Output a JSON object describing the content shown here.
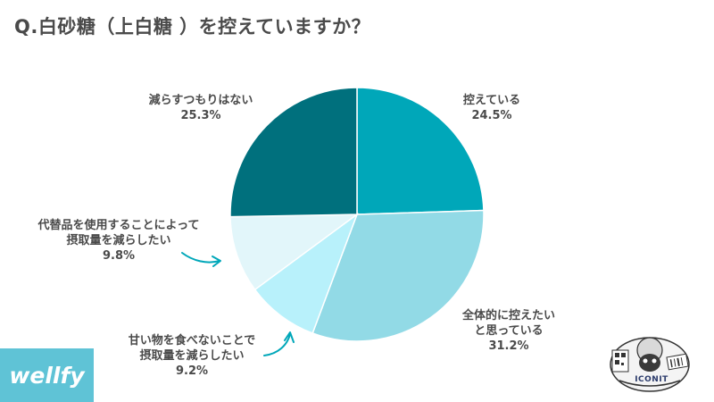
{
  "title": "Q.白砂糖（上白糖 ）を控えていますか？",
  "brand": "wellfy",
  "badge_text": "ICONIT",
  "colors": {
    "slice_1": "#00a7b9",
    "slice_2": "#92dae6",
    "slice_3": "#b8f1fb",
    "slice_4": "#e2f6fa",
    "slice_5": "#00707d",
    "arrow": "#00a7b9",
    "text": "#4a4a4a",
    "brand_bg": "#5fc3d6"
  },
  "chart_data": {
    "type": "pie",
    "slices": [
      {
        "label_lines": [
          "控えている"
        ],
        "value": 24.5,
        "pct_label": "24.5%"
      },
      {
        "label_lines": [
          "全体的に控えたい",
          "と思っている"
        ],
        "value": 31.2,
        "pct_label": "31.2%"
      },
      {
        "label_lines": [
          "甘い物を食べないことで",
          "摂取量を減らしたい"
        ],
        "value": 9.2,
        "pct_label": "9.2%"
      },
      {
        "label_lines": [
          "代替品を使用することによって",
          "摂取量を減らしたい"
        ],
        "value": 9.8,
        "pct_label": "9.8%"
      },
      {
        "label_lines": [
          "減らすつもりはない"
        ],
        "value": 25.3,
        "pct_label": "25.3%"
      }
    ],
    "start_angle": "12 o'clock",
    "direction": "clockwise",
    "legend": "none"
  }
}
